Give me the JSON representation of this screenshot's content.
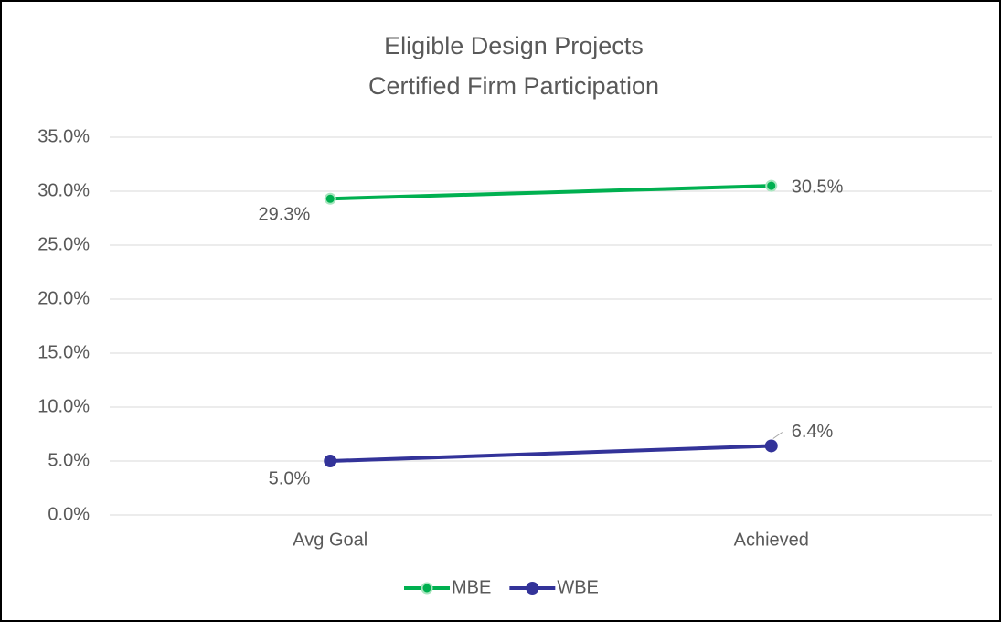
{
  "chart_data": {
    "type": "line",
    "title": [
      "Eligible Design Projects",
      "Certified Firm Participation"
    ],
    "categories": [
      "Avg Goal",
      "Achieved"
    ],
    "series": [
      {
        "name": "MBE",
        "color": "#00b050",
        "values": [
          29.3,
          30.5
        ],
        "value_labels": [
          "29.3%",
          "30.5%"
        ]
      },
      {
        "name": "WBE",
        "color": "#333399",
        "values": [
          5.0,
          6.4
        ],
        "value_labels": [
          "5.0%",
          "6.4%"
        ]
      }
    ],
    "ylim": [
      0,
      35
    ],
    "yticks": [
      {
        "value": 0,
        "label": "0.0%"
      },
      {
        "value": 5,
        "label": "5.0%"
      },
      {
        "value": 10,
        "label": "10.0%"
      },
      {
        "value": 15,
        "label": "15.0%"
      },
      {
        "value": 20,
        "label": "20.0%"
      },
      {
        "value": 25,
        "label": "25.0%"
      },
      {
        "value": 30,
        "label": "30.0%"
      },
      {
        "value": 35,
        "label": "35.0%"
      }
    ],
    "grid": true,
    "legend": "bottom"
  }
}
